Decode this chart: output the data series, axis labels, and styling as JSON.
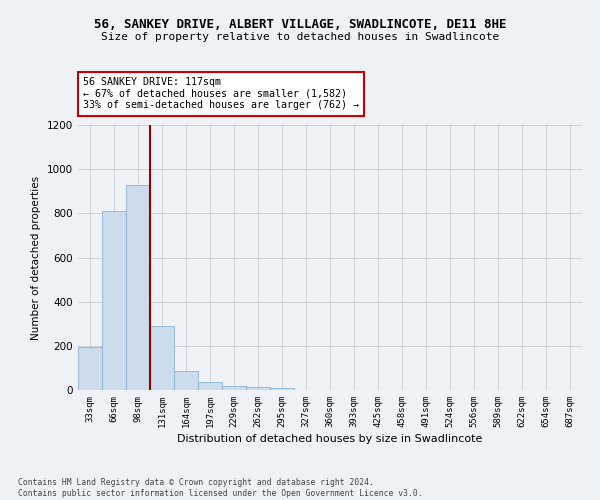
{
  "title": "56, SANKEY DRIVE, ALBERT VILLAGE, SWADLINCOTE, DE11 8HE",
  "subtitle": "Size of property relative to detached houses in Swadlincote",
  "xlabel": "Distribution of detached houses by size in Swadlincote",
  "ylabel": "Number of detached properties",
  "bar_color": "#ccdcec",
  "bar_edge_color": "#7aaaca",
  "categories": [
    "33sqm",
    "66sqm",
    "98sqm",
    "131sqm",
    "164sqm",
    "197sqm",
    "229sqm",
    "262sqm",
    "295sqm",
    "327sqm",
    "360sqm",
    "393sqm",
    "425sqm",
    "458sqm",
    "491sqm",
    "524sqm",
    "556sqm",
    "589sqm",
    "622sqm",
    "654sqm",
    "687sqm"
  ],
  "values": [
    195,
    810,
    930,
    290,
    85,
    35,
    20,
    15,
    10,
    0,
    0,
    0,
    0,
    0,
    0,
    0,
    0,
    0,
    0,
    0,
    0
  ],
  "ylim": [
    0,
    1200
  ],
  "yticks": [
    0,
    200,
    400,
    600,
    800,
    1000,
    1200
  ],
  "vline_x": 2.5,
  "vline_color": "#990000",
  "annotation_text": "56 SANKEY DRIVE: 117sqm\n← 67% of detached houses are smaller (1,582)\n33% of semi-detached houses are larger (762) →",
  "annotation_box_color": "#ffffff",
  "annotation_box_edge": "#cc0000",
  "footnote": "Contains HM Land Registry data © Crown copyright and database right 2024.\nContains public sector information licensed under the Open Government Licence v3.0.",
  "background_color": "#eef2f7",
  "grid_color": "#cccccc",
  "fig_width": 6.0,
  "fig_height": 5.0,
  "dpi": 100
}
